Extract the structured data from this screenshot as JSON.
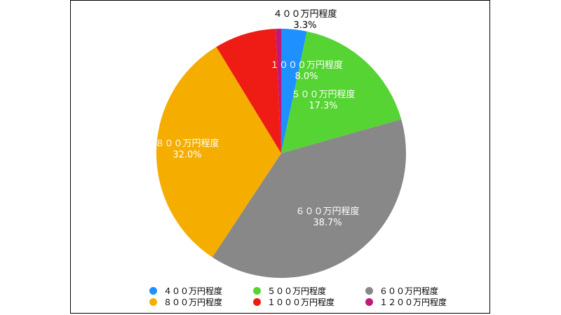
{
  "chart_data": {
    "type": "pie",
    "categories": [
      "４００万円程度",
      "５００万円程度",
      "６００万円程度",
      "８００万円程度",
      "１０００万円程度",
      "１２００万円程度"
    ],
    "values": [
      3.3,
      17.3,
      38.7,
      32.0,
      8.0,
      0.7
    ],
    "percent_labels": [
      "3.3%",
      "17.3%",
      "38.7%",
      "32.0%",
      "8.0%",
      ""
    ],
    "colors": [
      "#1e90ff",
      "#55d433",
      "#888888",
      "#f5ad00",
      "#ee1c14",
      "#c0197a"
    ],
    "legend_position": "bottom"
  }
}
